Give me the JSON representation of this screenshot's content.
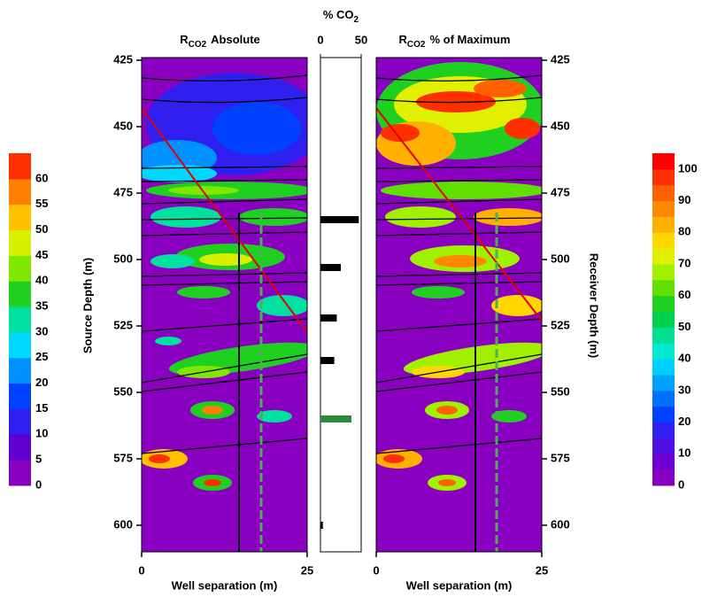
{
  "chart_data": [
    {
      "type": "colorbar",
      "clim": [
        0,
        65
      ],
      "ticks": [
        0,
        5,
        10,
        15,
        20,
        25,
        30,
        35,
        40,
        45,
        50,
        55,
        60
      ],
      "colors": [
        "#8a00c0",
        "#6000d0",
        "#3020f0",
        "#0040ff",
        "#0090ff",
        "#00d8ff",
        "#00e0a0",
        "#20d020",
        "#80e800",
        "#d8f000",
        "#ffc000",
        "#ff8000",
        "#ff3000"
      ]
    },
    {
      "type": "contour",
      "title_parts": [
        "R",
        "CO2",
        "Absolute"
      ],
      "ylabel": "Source Depth (m)",
      "xlabel": "Well separation (m)",
      "xlim": [
        0,
        25
      ],
      "xticks": [
        0,
        25
      ],
      "ylim": [
        424,
        610
      ],
      "yticks": [
        425,
        450,
        475,
        500,
        525,
        550,
        575,
        600
      ]
    },
    {
      "type": "bar",
      "title_parts": [
        "% CO",
        "2"
      ],
      "xlim": [
        0,
        50
      ],
      "xticks": [
        0,
        50
      ],
      "ylim": [
        424,
        610
      ],
      "y": [
        485,
        503,
        522,
        538,
        560,
        600
      ],
      "values": [
        47,
        25,
        20,
        17,
        38,
        3
      ],
      "colors": [
        "#000000",
        "#000000",
        "#000000",
        "#000000",
        "#2e8b3e",
        "#000000"
      ]
    },
    {
      "type": "contour",
      "title_parts": [
        "R",
        "CO2",
        "% of Maximum"
      ],
      "ylabel": "Receiver Depth (m)",
      "xlabel": "Well separation (m)",
      "xlim": [
        0,
        25
      ],
      "xticks": [
        0,
        25
      ],
      "ylim": [
        424,
        610
      ],
      "yticks": [
        425,
        450,
        475,
        500,
        525,
        550,
        575,
        600
      ]
    },
    {
      "type": "colorbar",
      "clim": [
        0,
        105
      ],
      "ticks": [
        0,
        10,
        20,
        30,
        40,
        50,
        60,
        70,
        80,
        90,
        100
      ],
      "colors": [
        "#8a00c0",
        "#7000d0",
        "#5010e0",
        "#3020f0",
        "#0040ff",
        "#0070ff",
        "#00a0ff",
        "#00d0ff",
        "#00e8d0",
        "#00e090",
        "#00d050",
        "#20d020",
        "#60e000",
        "#a0f000",
        "#e0f000",
        "#ffd800",
        "#ffb000",
        "#ff8800",
        "#ff6000",
        "#ff3000",
        "#ff0000"
      ]
    }
  ]
}
